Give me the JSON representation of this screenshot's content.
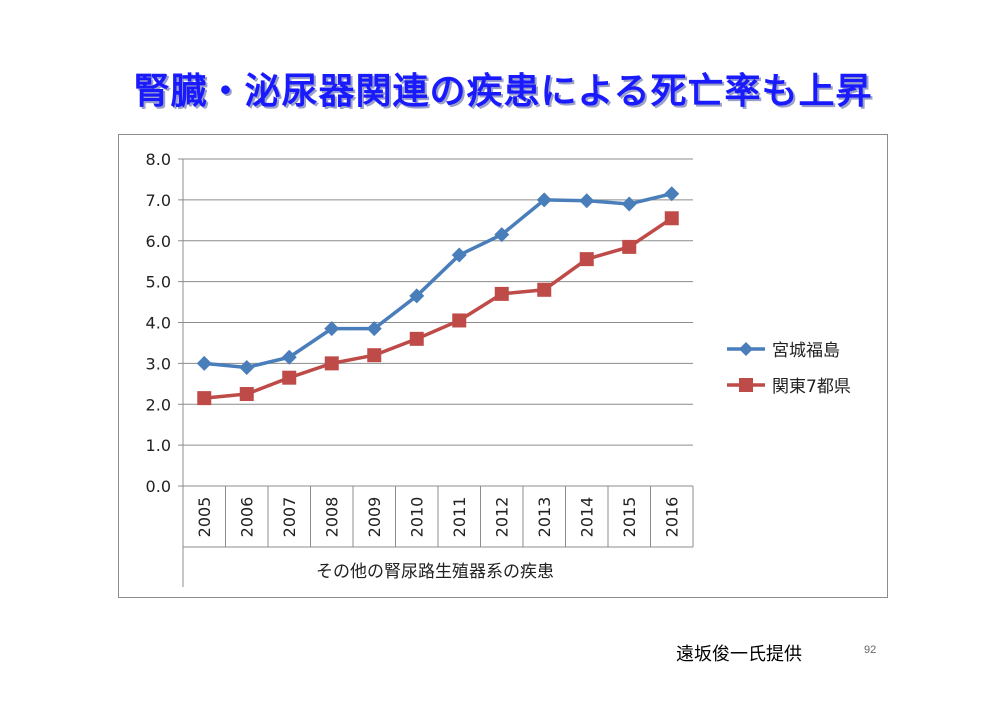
{
  "slide": {
    "title": "腎臓・泌尿器関連の疾患による死亡率も上昇",
    "credit": "遠坂俊一氏提供",
    "page_number": "92"
  },
  "chart_data": {
    "type": "line",
    "categories": [
      "2005",
      "2006",
      "2007",
      "2008",
      "2009",
      "2010",
      "2011",
      "2012",
      "2013",
      "2014",
      "2015",
      "2016"
    ],
    "xlabel": "その他の腎尿路生殖器系の疾患",
    "ylabel": "",
    "ylim": [
      0,
      8
    ],
    "yticks": [
      "0.0",
      "1.0",
      "2.0",
      "3.0",
      "4.0",
      "5.0",
      "6.0",
      "7.0",
      "8.0"
    ],
    "grid": "horizontal",
    "legend_position": "right",
    "series": [
      {
        "name": "宮城福島",
        "color": "#4a7ebb",
        "marker": "diamond",
        "values": [
          3.0,
          2.9,
          3.15,
          3.85,
          3.85,
          4.65,
          5.65,
          6.15,
          7.0,
          6.98,
          6.9,
          7.15
        ]
      },
      {
        "name": "関東7都県",
        "color": "#be4b48",
        "marker": "square",
        "values": [
          2.15,
          2.25,
          2.65,
          3.0,
          3.2,
          3.6,
          4.05,
          4.7,
          4.8,
          5.55,
          5.85,
          6.55
        ]
      }
    ]
  }
}
